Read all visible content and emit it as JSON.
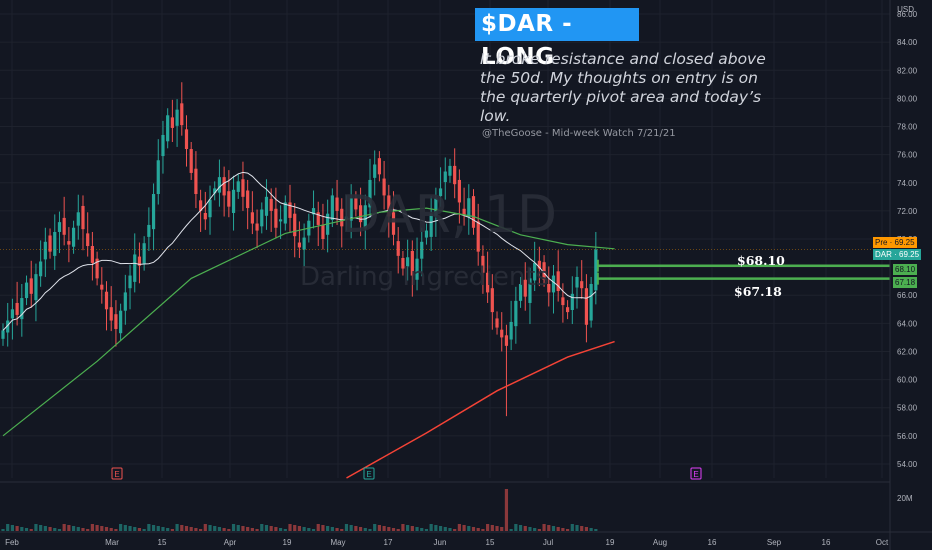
{
  "header": {
    "title": "$DAR - LONG",
    "note": "It broke resistance and closed above the 50d. My thoughts on entry is on the quarterly pivot area and today’s low.",
    "signature": "@TheGoose - Mid-week Watch 7/21/21"
  },
  "watermark": {
    "symbol": "DAR, 1D",
    "name": "Darling Ingredients"
  },
  "levels": [
    {
      "label": "$68.10",
      "price": 68.1,
      "tag": "68.10",
      "color": "#4caf50"
    },
    {
      "label": "$67.18",
      "price": 67.18,
      "tag": "67.18",
      "color": "#4caf50"
    }
  ],
  "price_tags": [
    {
      "text": "Pre · 69.25",
      "price": 69.25,
      "color": "#ff9800"
    },
    {
      "text": "DAR · 69.25",
      "price": 69.25,
      "color": "#26a69a"
    }
  ],
  "axis": {
    "currency": "USD",
    "y_ticks": [
      "86.00",
      "84.00",
      "82.00",
      "80.00",
      "78.00",
      "76.00",
      "74.00",
      "72.00",
      "70.00",
      "68.00",
      "66.00",
      "64.00",
      "62.00",
      "60.00",
      "58.00",
      "56.00",
      "54.00"
    ],
    "x_ticks": [
      "Feb",
      "Mar",
      "15",
      "Apr",
      "19",
      "May",
      "17",
      "Jun",
      "15",
      "Jul",
      "19",
      "Aug",
      "16",
      "Sep",
      "16",
      "Oct"
    ],
    "volume_tick": "20M"
  },
  "events": [
    "E",
    "E",
    "E"
  ],
  "colors": {
    "up": "#26a69a",
    "down": "#ef5350",
    "sma50": "#4caf50",
    "sma200": "#f44336",
    "sma20": "#e0e3eb",
    "background": "#131722"
  },
  "chart_data": {
    "type": "candlestick",
    "ylim": [
      53,
      87
    ],
    "close_series": [
      63.5,
      64.2,
      65.0,
      64.6,
      65.8,
      66.9,
      66.1,
      67.5,
      68.4,
      69.8,
      69.1,
      70.5,
      71.2,
      70.3,
      69.6,
      70.8,
      71.9,
      70.7,
      69.5,
      68.3,
      67.2,
      66.4,
      65.0,
      64.2,
      63.6,
      64.9,
      66.2,
      67.4,
      68.9,
      68.1,
      69.7,
      71.0,
      73.2,
      75.6,
      77.4,
      78.8,
      77.9,
      79.2,
      78.1,
      76.4,
      74.7,
      73.2,
      72.0,
      71.4,
      72.8,
      73.6,
      74.4,
      73.1,
      72.3,
      73.5,
      74.1,
      73.0,
      72.2,
      71.1,
      70.6,
      72.1,
      73.0,
      72.0,
      70.8,
      71.4,
      72.6,
      71.5,
      70.2,
      69.4,
      70.1,
      71.3,
      72.2,
      71.0,
      70.0,
      71.8,
      73.1,
      72.0,
      70.9,
      71.6,
      72.9,
      72.1,
      71.2,
      72.4,
      74.2,
      75.3,
      74.6,
      73.1,
      71.6,
      70.3,
      68.8,
      67.9,
      68.7,
      67.4,
      68.6,
      69.8,
      70.6,
      71.8,
      72.9,
      73.6,
      74.8,
      75.2,
      73.9,
      72.6,
      71.7,
      72.9,
      70.8,
      69.1,
      67.6,
      66.2,
      64.8,
      63.7,
      63.0,
      62.4,
      64.1,
      65.6,
      66.8,
      65.9,
      67.2,
      68.3,
      67.9,
      67.1,
      66.2,
      67.4,
      66.3,
      65.3,
      64.8,
      66.1,
      67.3,
      66.5,
      63.9,
      66.8,
      69.25
    ],
    "sma50": [
      {
        "i": 0,
        "v": 56.0
      },
      {
        "i": 20,
        "v": 61.3
      },
      {
        "i": 40,
        "v": 67.2
      },
      {
        "i": 60,
        "v": 70.4
      },
      {
        "i": 80,
        "v": 71.9
      },
      {
        "i": 90,
        "v": 72.2
      },
      {
        "i": 100,
        "v": 71.6
      },
      {
        "i": 110,
        "v": 70.3
      },
      {
        "i": 120,
        "v": 69.6
      },
      {
        "i": 130,
        "v": 69.3
      }
    ],
    "sma200": [
      {
        "i": 73,
        "v": 53.0
      },
      {
        "i": 90,
        "v": 56.2
      },
      {
        "i": 105,
        "v": 59.2
      },
      {
        "i": 120,
        "v": 61.6
      },
      {
        "i": 130,
        "v": 62.7
      }
    ],
    "volume_max_index": 107
  }
}
